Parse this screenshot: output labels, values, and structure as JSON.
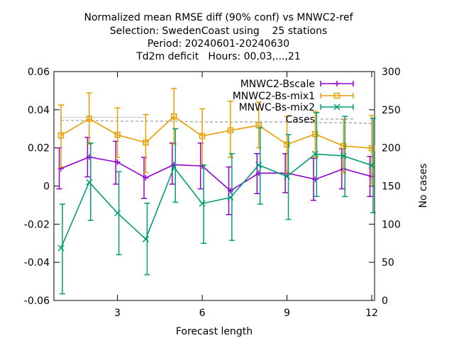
{
  "chart_data": {
    "type": "line",
    "title_lines": [
      "Normalized mean RMSE diff (90% conf) vs MNWC2-ref",
      "Selection: SwedenCoast using    25 stations",
      "Period: 20240601-20240630",
      "Td2m deficit   Hours: 00,03,...,21"
    ],
    "xlabel": "Forecast length",
    "ylabel": "",
    "y2label": "No cases",
    "xlim": [
      0.75,
      12.1
    ],
    "ylim": [
      -0.06,
      0.06
    ],
    "y2lim": [
      0,
      300
    ],
    "xticks": [
      3,
      6,
      9,
      12
    ],
    "xtick_labels": [
      "3",
      "6",
      "9",
      "12"
    ],
    "yticks": [
      -0.06,
      -0.04,
      -0.02,
      0,
      0.02,
      0.04,
      0.06
    ],
    "ytick_labels": [
      "-0.06",
      "-0.04",
      "-0.02",
      "0",
      "0.02",
      "0.04",
      "0.06"
    ],
    "y2ticks": [
      0,
      50,
      100,
      150,
      200,
      250,
      300
    ],
    "y2tick_labels": [
      "0",
      "50",
      "100",
      "150",
      "200",
      "250",
      "300"
    ],
    "legend_position": "top-right",
    "x": [
      1,
      2,
      3,
      4,
      5,
      6,
      7,
      8,
      9,
      10,
      11,
      12
    ],
    "series": [
      {
        "name": "MNWC2-Bscale",
        "color": "#9400d3",
        "marker": "plus",
        "values": [
          0.0092,
          0.0152,
          0.0125,
          0.0043,
          0.0112,
          0.0105,
          -0.0025,
          0.0067,
          0.0068,
          0.0035,
          0.009,
          0.005
        ],
        "low": [
          -0.0015,
          0.0048,
          0.001,
          -0.0065,
          0.001,
          -0.0015,
          -0.015,
          -0.004,
          -0.0035,
          -0.0075,
          -0.0015,
          -0.0055
        ],
        "high": [
          0.02,
          0.0255,
          0.0235,
          0.015,
          0.0225,
          0.0225,
          0.01,
          0.017,
          0.017,
          0.0145,
          0.0195,
          0.0155
        ]
      },
      {
        "name": "MNWC2-Bs-mix1",
        "color": "#e69f00",
        "marker": "square",
        "values": [
          0.0265,
          0.0353,
          0.0268,
          0.0228,
          0.0365,
          0.0262,
          0.0292,
          0.0318,
          0.0218,
          0.0272,
          0.021,
          0.0198
        ],
        "low": [
          0.01,
          0.022,
          0.015,
          0.007,
          0.022,
          0.011,
          0.015,
          0.02,
          0.007,
          0.015,
          0.007,
          0.001
        ],
        "high": [
          0.0425,
          0.0488,
          0.041,
          0.0375,
          0.0512,
          0.0405,
          0.0445,
          0.044,
          0.0365,
          0.039,
          0.035,
          0.037
        ]
      },
      {
        "name": "MNWC-Bs-mix2",
        "color": "#009e73",
        "marker": "cross",
        "values": [
          -0.0325,
          0.002,
          -0.0142,
          -0.0278,
          0.0098,
          -0.0092,
          -0.006,
          0.011,
          0.005,
          0.0168,
          0.0158,
          0.0108
        ],
        "low": [
          -0.0565,
          -0.018,
          -0.036,
          -0.0465,
          -0.0085,
          -0.03,
          -0.0285,
          -0.0095,
          -0.0175,
          -0.0055,
          -0.0055,
          -0.014
        ],
        "high": [
          -0.0095,
          0.0225,
          0.0075,
          -0.009,
          0.03,
          0.011,
          0.017,
          0.0305,
          0.027,
          0.0385,
          0.0365,
          0.0355
        ]
      }
    ],
    "cases": {
      "name": "Cases",
      "color": "#a0a0a0",
      "x": [
        1,
        2,
        3,
        4,
        5,
        6,
        7,
        8,
        9,
        10,
        11,
        12
      ],
      "values": [
        236,
        236,
        235,
        235,
        235,
        234,
        234,
        234,
        234,
        233,
        233,
        232
      ],
      "ref_line_y2": 240,
      "ref_line_x": [
        1,
        4
      ]
    }
  }
}
